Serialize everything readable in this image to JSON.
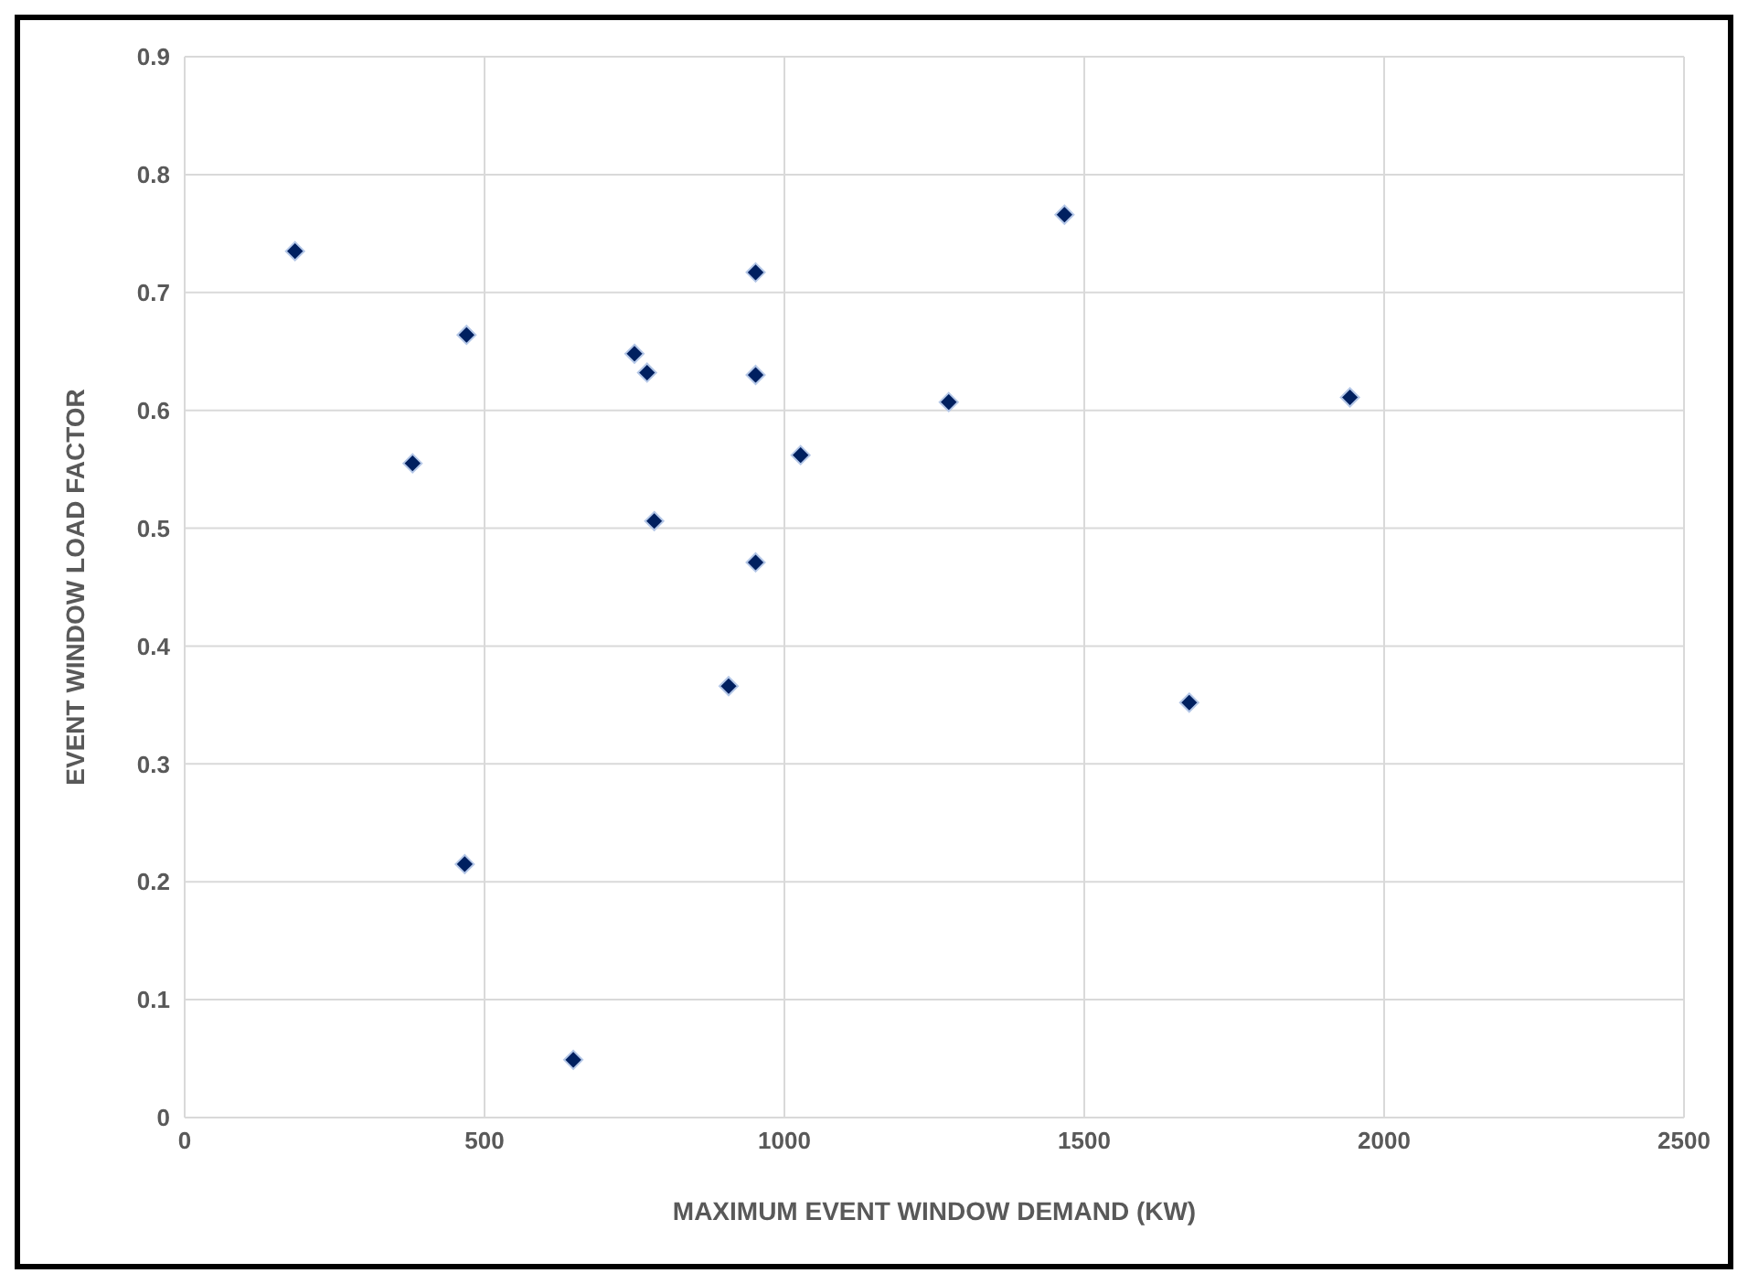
{
  "chart_data": {
    "type": "scatter",
    "xlabel": "MAXIMUM EVENT WINDOW DEMAND (KW)",
    "ylabel": "EVENT WINDOW LOAD FACTOR",
    "x": [
      184,
      380,
      470,
      467,
      648,
      750,
      771,
      783,
      907,
      952,
      952,
      952,
      1027,
      1274,
      1467,
      1675,
      1943
    ],
    "series": [
      {
        "color": "#002060",
        "values": [
          0.735,
          0.555,
          0.664,
          0.215,
          0.049,
          0.648,
          0.632,
          0.506,
          0.366,
          0.717,
          0.63,
          0.471,
          0.562,
          0.607,
          0.766,
          0.352,
          0.611
        ]
      }
    ],
    "xlim": [
      0,
      2500
    ],
    "xticks": [
      0,
      500,
      1000,
      1500,
      2000,
      2500
    ],
    "ylim": [
      0,
      0.9
    ],
    "yticks": [
      0,
      0.1,
      0.2,
      0.3,
      0.4,
      0.5,
      0.6,
      0.7,
      0.8,
      0.9
    ],
    "grid": true,
    "marker": "diamond",
    "legend": false
  }
}
